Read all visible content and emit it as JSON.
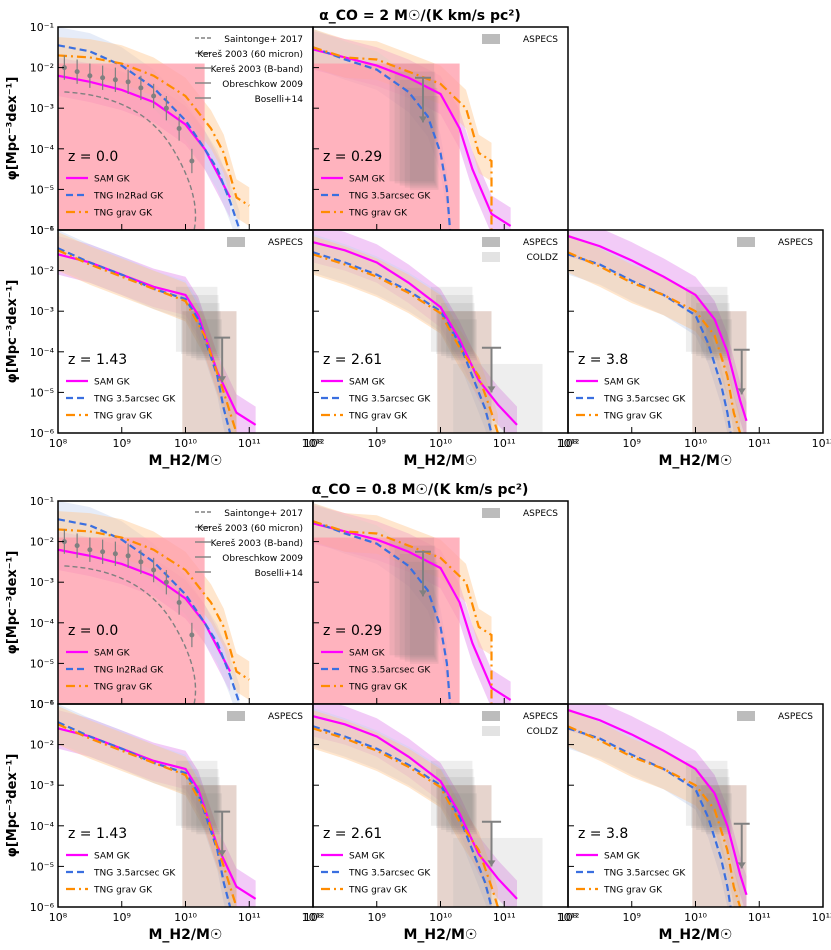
{
  "figure": {
    "sections": [
      {
        "title": "α_CO = 2 M☉/(K km/s pc²)",
        "key": "a2"
      },
      {
        "title": "α_CO = 0.8 M☉/(K km/s pc²)",
        "key": "a08"
      }
    ],
    "ylabel": "φ[Mpc⁻³dex⁻¹]",
    "xlabel": "M_H2/M☉",
    "x_ticks": [
      "10⁸",
      "10⁹",
      "10¹⁰",
      "10¹¹",
      "10¹²"
    ],
    "y_ticks": [
      "10⁻¹",
      "10⁻²",
      "10⁻³",
      "10⁻⁴",
      "10⁻⁵",
      "10⁻⁶"
    ],
    "colors": {
      "sam": "#ff00ff",
      "tng_dashed": "#3a6fe0",
      "tng_grav": "#ff8c00",
      "obs": "#808080",
      "pink_fill": "#ff9aa8",
      "orange_fill": "#ffc890",
      "sam_fill": "#e8a0f0"
    }
  },
  "chart_data": [
    {
      "type": "line",
      "section": "α_CO = 2 M☉/(K km/s pc²)",
      "redshift_label": "z = 0.0",
      "xlim": [
        100000000.0,
        1000000000000.0
      ],
      "ylim": [
        1e-06,
        0.1
      ],
      "log_x": true,
      "log_y": true,
      "legend": [
        "SAM GK",
        "TNG In2Rad GK",
        "TNG grav GK"
      ],
      "obs_legend": [
        "Saintonge+ 2017",
        "Kereš 2003 (60 micron)",
        "Kereš 2003 (B-band)",
        "Obreschkow 2009",
        "Boselli+14"
      ],
      "series": [
        {
          "name": "SAM GK",
          "x": [
            8.0,
            8.5,
            9.0,
            9.5,
            10.0,
            10.3,
            10.5,
            10.7
          ],
          "y": [
            -2.2,
            -2.35,
            -2.55,
            -2.85,
            -3.4,
            -4.0,
            -4.6,
            -5.2
          ]
        },
        {
          "name": "TNG In2Rad GK",
          "x": [
            8.0,
            8.5,
            9.0,
            9.5,
            10.0,
            10.3,
            10.5,
            10.7,
            10.85
          ],
          "y": [
            -1.45,
            -1.6,
            -1.95,
            -2.5,
            -3.3,
            -4.0,
            -4.5,
            -5.3,
            -6.0
          ]
        },
        {
          "name": "TNG grav GK",
          "x": [
            8.0,
            8.5,
            9.0,
            9.5,
            10.0,
            10.4,
            10.6,
            10.8,
            11.0
          ],
          "y": [
            -1.7,
            -1.75,
            -1.9,
            -2.2,
            -2.7,
            -3.5,
            -4.1,
            -5.2,
            -5.4
          ]
        }
      ]
    },
    {
      "type": "line",
      "section": "α_CO = 2 M☉/(K km/s pc²)",
      "redshift_label": "z = 0.29",
      "xlim": [
        100000000.0,
        1000000000000.0
      ],
      "ylim": [
        1e-06,
        0.1
      ],
      "legend": [
        "SAM GK",
        "TNG 3.5arcsec GK",
        "TNG grav GK"
      ],
      "obs_legend": [
        "ASPECS"
      ],
      "series": [
        {
          "name": "SAM GK",
          "x": [
            8.0,
            8.5,
            9.0,
            9.5,
            10.0,
            10.3,
            10.5,
            10.8,
            11.1
          ],
          "y": [
            -1.55,
            -1.75,
            -1.95,
            -2.25,
            -2.65,
            -3.5,
            -4.5,
            -5.6,
            -5.9
          ]
        },
        {
          "name": "TNG 3.5arcsec GK",
          "x": [
            8.0,
            8.5,
            9.0,
            9.5,
            9.8,
            10.0,
            10.1,
            10.15
          ],
          "y": [
            -1.5,
            -1.8,
            -2.05,
            -2.6,
            -3.2,
            -4.1,
            -5.0,
            -6.0
          ]
        },
        {
          "name": "TNG grav GK",
          "x": [
            8.0,
            8.5,
            9.0,
            9.5,
            10.0,
            10.4,
            10.6,
            10.8,
            10.8
          ],
          "y": [
            -1.5,
            -1.75,
            -1.8,
            -2.1,
            -2.4,
            -3.0,
            -4.1,
            -4.3,
            -6.0
          ]
        }
      ]
    },
    {
      "type": "line",
      "section": "α_CO = 2 M☉/(K km/s pc²)",
      "redshift_label": "z = 1.43",
      "legend": [
        "SAM GK",
        "TNG 3.5arcsec GK",
        "TNG grav GK"
      ],
      "obs_legend": [
        "ASPECS"
      ],
      "series": [
        {
          "name": "SAM GK",
          "x": [
            8.0,
            8.5,
            9.0,
            9.5,
            10.0,
            10.2,
            10.5,
            10.8,
            11.1
          ],
          "y": [
            -1.6,
            -1.8,
            -2.1,
            -2.4,
            -2.6,
            -3.1,
            -4.5,
            -5.5,
            -5.8
          ]
        },
        {
          "name": "TNG 3.5arcsec GK",
          "x": [
            8.0,
            8.5,
            9.0,
            9.5,
            10.0,
            10.2,
            10.5,
            10.6,
            10.7
          ],
          "y": [
            -1.45,
            -1.8,
            -2.1,
            -2.45,
            -2.7,
            -3.2,
            -4.6,
            -5.4,
            -6.0
          ]
        },
        {
          "name": "TNG grav GK",
          "x": [
            8.0,
            8.5,
            9.0,
            9.5,
            10.0,
            10.3,
            10.6,
            10.7,
            10.8
          ],
          "y": [
            -1.5,
            -1.85,
            -2.15,
            -2.45,
            -2.75,
            -3.6,
            -5.0,
            -5.5,
            -6.0
          ]
        }
      ]
    },
    {
      "type": "line",
      "section": "α_CO = 2 M☉/(K km/s pc²)",
      "redshift_label": "z = 2.61",
      "legend": [
        "SAM GK",
        "TNG 3.5arcsec GK",
        "TNG grav GK"
      ],
      "obs_legend": [
        "ASPECS",
        "COLDZ"
      ],
      "series": [
        {
          "name": "SAM GK",
          "x": [
            8.0,
            8.5,
            9.0,
            9.5,
            10.0,
            10.3,
            10.6,
            10.9,
            11.2
          ],
          "y": [
            -1.3,
            -1.5,
            -1.8,
            -2.3,
            -2.9,
            -3.7,
            -4.7,
            -5.3,
            -5.8
          ]
        },
        {
          "name": "TNG 3.5arcsec GK",
          "x": [
            8.0,
            8.5,
            9.0,
            9.5,
            10.0,
            10.3,
            10.5,
            10.7,
            10.8
          ],
          "y": [
            -1.55,
            -1.8,
            -2.1,
            -2.5,
            -3.0,
            -3.8,
            -4.6,
            -5.4,
            -6.0
          ]
        },
        {
          "name": "TNG grav GK",
          "x": [
            8.0,
            8.5,
            9.0,
            9.5,
            10.0,
            10.3,
            10.6,
            10.8,
            10.9
          ],
          "y": [
            -1.6,
            -1.85,
            -2.15,
            -2.55,
            -3.05,
            -3.9,
            -4.6,
            -5.5,
            -6.0
          ]
        }
      ]
    },
    {
      "type": "line",
      "section": "α_CO = 2 M☉/(K km/s pc²)",
      "redshift_label": "z = 3.8",
      "legend": [
        "SAM GK",
        "TNG 3.5arcsec GK",
        "TNG grav GK"
      ],
      "obs_legend": [
        "ASPECS"
      ],
      "series": [
        {
          "name": "SAM GK",
          "x": [
            8.0,
            8.5,
            9.0,
            9.5,
            10.0,
            10.3,
            10.5,
            10.7,
            10.8
          ],
          "y": [
            -1.15,
            -1.4,
            -1.75,
            -2.15,
            -2.6,
            -3.2,
            -4.0,
            -5.2,
            -5.7
          ]
        },
        {
          "name": "TNG 3.5arcsec GK",
          "x": [
            8.0,
            8.5,
            9.0,
            9.5,
            10.0,
            10.2,
            10.4,
            10.5,
            10.55
          ],
          "y": [
            -1.6,
            -1.85,
            -2.25,
            -2.6,
            -3.1,
            -3.8,
            -4.8,
            -5.5,
            -6.0
          ]
        },
        {
          "name": "TNG grav GK",
          "x": [
            8.0,
            8.5,
            9.0,
            9.5,
            10.0,
            10.3,
            10.5,
            10.6,
            10.7
          ],
          "y": [
            -1.55,
            -1.9,
            -2.3,
            -2.6,
            -3.0,
            -3.6,
            -4.6,
            -5.5,
            -6.0
          ]
        }
      ]
    },
    {
      "type": "line",
      "section": "α_CO = 0.8 M☉/(K km/s pc²)",
      "redshift_label": "z = 0.0",
      "legend": [
        "SAM GK",
        "TNG In2Rad GK",
        "TNG grav GK"
      ],
      "obs_legend": [
        "Saintonge+ 2017",
        "Kereš 2003 (60 micron)",
        "Kereš 2003 (B-band)",
        "Obreschkow 2009",
        "Boselli+14"
      ],
      "series": [
        {
          "name": "SAM GK",
          "x": [
            8.0,
            8.5,
            9.0,
            9.5,
            10.0,
            10.3,
            10.5,
            10.7
          ],
          "y": [
            -2.2,
            -2.35,
            -2.55,
            -2.85,
            -3.4,
            -4.0,
            -4.6,
            -5.2
          ]
        },
        {
          "name": "TNG In2Rad GK",
          "x": [
            8.0,
            8.5,
            9.0,
            9.5,
            10.0,
            10.3,
            10.5,
            10.7,
            10.85
          ],
          "y": [
            -1.45,
            -1.6,
            -1.95,
            -2.5,
            -3.3,
            -4.0,
            -4.5,
            -5.3,
            -6.0
          ]
        },
        {
          "name": "TNG grav GK",
          "x": [
            8.0,
            8.5,
            9.0,
            9.5,
            10.0,
            10.4,
            10.6,
            10.8,
            11.0
          ],
          "y": [
            -1.7,
            -1.75,
            -1.9,
            -2.2,
            -2.7,
            -3.5,
            -4.1,
            -5.2,
            -5.4
          ]
        }
      ]
    },
    {
      "type": "line",
      "section": "α_CO = 0.8 M☉/(K km/s pc²)",
      "redshift_label": "z = 0.29",
      "legend": [
        "SAM GK",
        "TNG 3.5arcsec GK",
        "TNG grav GK"
      ],
      "obs_legend": [
        "ASPECS"
      ],
      "series": [
        {
          "name": "SAM GK",
          "x": [
            8.0,
            8.5,
            9.0,
            9.5,
            10.0,
            10.3,
            10.5,
            10.8,
            11.1
          ],
          "y": [
            -1.55,
            -1.75,
            -1.95,
            -2.25,
            -2.65,
            -3.5,
            -4.5,
            -5.6,
            -5.9
          ]
        },
        {
          "name": "TNG 3.5arcsec GK",
          "x": [
            8.0,
            8.5,
            9.0,
            9.5,
            9.8,
            10.0,
            10.1,
            10.15
          ],
          "y": [
            -1.5,
            -1.8,
            -2.05,
            -2.6,
            -3.2,
            -4.1,
            -5.0,
            -6.0
          ]
        },
        {
          "name": "TNG grav GK",
          "x": [
            8.0,
            8.5,
            9.0,
            9.5,
            10.0,
            10.4,
            10.6,
            10.8,
            10.8
          ],
          "y": [
            -1.5,
            -1.75,
            -1.8,
            -2.1,
            -2.4,
            -3.0,
            -4.1,
            -4.3,
            -6.0
          ]
        }
      ]
    },
    {
      "type": "line",
      "section": "α_CO = 0.8 M☉/(K km/s pc²)",
      "redshift_label": "z = 1.43",
      "legend": [
        "SAM GK",
        "TNG 3.5arcsec GK",
        "TNG grav GK"
      ],
      "obs_legend": [
        "ASPECS"
      ],
      "series": [
        {
          "name": "SAM GK",
          "x": [
            8.0,
            8.5,
            9.0,
            9.5,
            10.0,
            10.2,
            10.5,
            10.8,
            11.1
          ],
          "y": [
            -1.6,
            -1.8,
            -2.1,
            -2.4,
            -2.6,
            -3.1,
            -4.5,
            -5.5,
            -5.8
          ]
        },
        {
          "name": "TNG 3.5arcsec GK",
          "x": [
            8.0,
            8.5,
            9.0,
            9.5,
            10.0,
            10.2,
            10.5,
            10.6,
            10.7
          ],
          "y": [
            -1.45,
            -1.8,
            -2.1,
            -2.45,
            -2.7,
            -3.2,
            -4.6,
            -5.4,
            -6.0
          ]
        },
        {
          "name": "TNG grav GK",
          "x": [
            8.0,
            8.5,
            9.0,
            9.5,
            10.0,
            10.3,
            10.6,
            10.7,
            10.8
          ],
          "y": [
            -1.5,
            -1.85,
            -2.15,
            -2.45,
            -2.75,
            -3.6,
            -5.0,
            -5.5,
            -6.0
          ]
        }
      ]
    },
    {
      "type": "line",
      "section": "α_CO = 0.8 M☉/(K km/s pc²)",
      "redshift_label": "z = 2.61",
      "legend": [
        "SAM GK",
        "TNG 3.5arcsec GK",
        "TNG grav GK"
      ],
      "obs_legend": [
        "ASPECS",
        "COLDZ"
      ],
      "series": [
        {
          "name": "SAM GK",
          "x": [
            8.0,
            8.5,
            9.0,
            9.5,
            10.0,
            10.3,
            10.6,
            10.9,
            11.2
          ],
          "y": [
            -1.3,
            -1.5,
            -1.8,
            -2.3,
            -2.9,
            -3.7,
            -4.7,
            -5.3,
            -5.8
          ]
        },
        {
          "name": "TNG 3.5arcsec GK",
          "x": [
            8.0,
            8.5,
            9.0,
            9.5,
            10.0,
            10.3,
            10.5,
            10.7,
            10.8
          ],
          "y": [
            -1.55,
            -1.8,
            -2.1,
            -2.5,
            -3.0,
            -3.8,
            -4.6,
            -5.4,
            -6.0
          ]
        },
        {
          "name": "TNG grav GK",
          "x": [
            8.0,
            8.5,
            9.0,
            9.5,
            10.0,
            10.3,
            10.6,
            10.8,
            10.9
          ],
          "y": [
            -1.6,
            -1.85,
            -2.15,
            -2.55,
            -3.05,
            -3.9,
            -4.6,
            -5.5,
            -6.0
          ]
        }
      ]
    },
    {
      "type": "line",
      "section": "α_CO = 0.8 M☉/(K km/s pc²)",
      "redshift_label": "z = 3.8",
      "legend": [
        "SAM GK",
        "TNG 3.5arcsec GK",
        "TNG grav GK"
      ],
      "obs_legend": [
        "ASPECS"
      ],
      "series": [
        {
          "name": "SAM GK",
          "x": [
            8.0,
            8.5,
            9.0,
            9.5,
            10.0,
            10.3,
            10.5,
            10.7,
            10.8
          ],
          "y": [
            -1.15,
            -1.4,
            -1.75,
            -2.15,
            -2.6,
            -3.2,
            -4.0,
            -5.2,
            -5.7
          ]
        },
        {
          "name": "TNG 3.5arcsec GK",
          "x": [
            8.0,
            8.5,
            9.0,
            9.5,
            10.0,
            10.2,
            10.4,
            10.5,
            10.55
          ],
          "y": [
            -1.6,
            -1.85,
            -2.25,
            -2.6,
            -3.1,
            -3.8,
            -4.8,
            -5.5,
            -6.0
          ]
        },
        {
          "name": "TNG grav GK",
          "x": [
            8.0,
            8.5,
            9.0,
            9.5,
            10.0,
            10.3,
            10.5,
            10.6,
            10.7
          ],
          "y": [
            -1.55,
            -1.9,
            -2.3,
            -2.6,
            -3.0,
            -3.6,
            -4.6,
            -5.5,
            -6.0
          ]
        }
      ]
    }
  ]
}
